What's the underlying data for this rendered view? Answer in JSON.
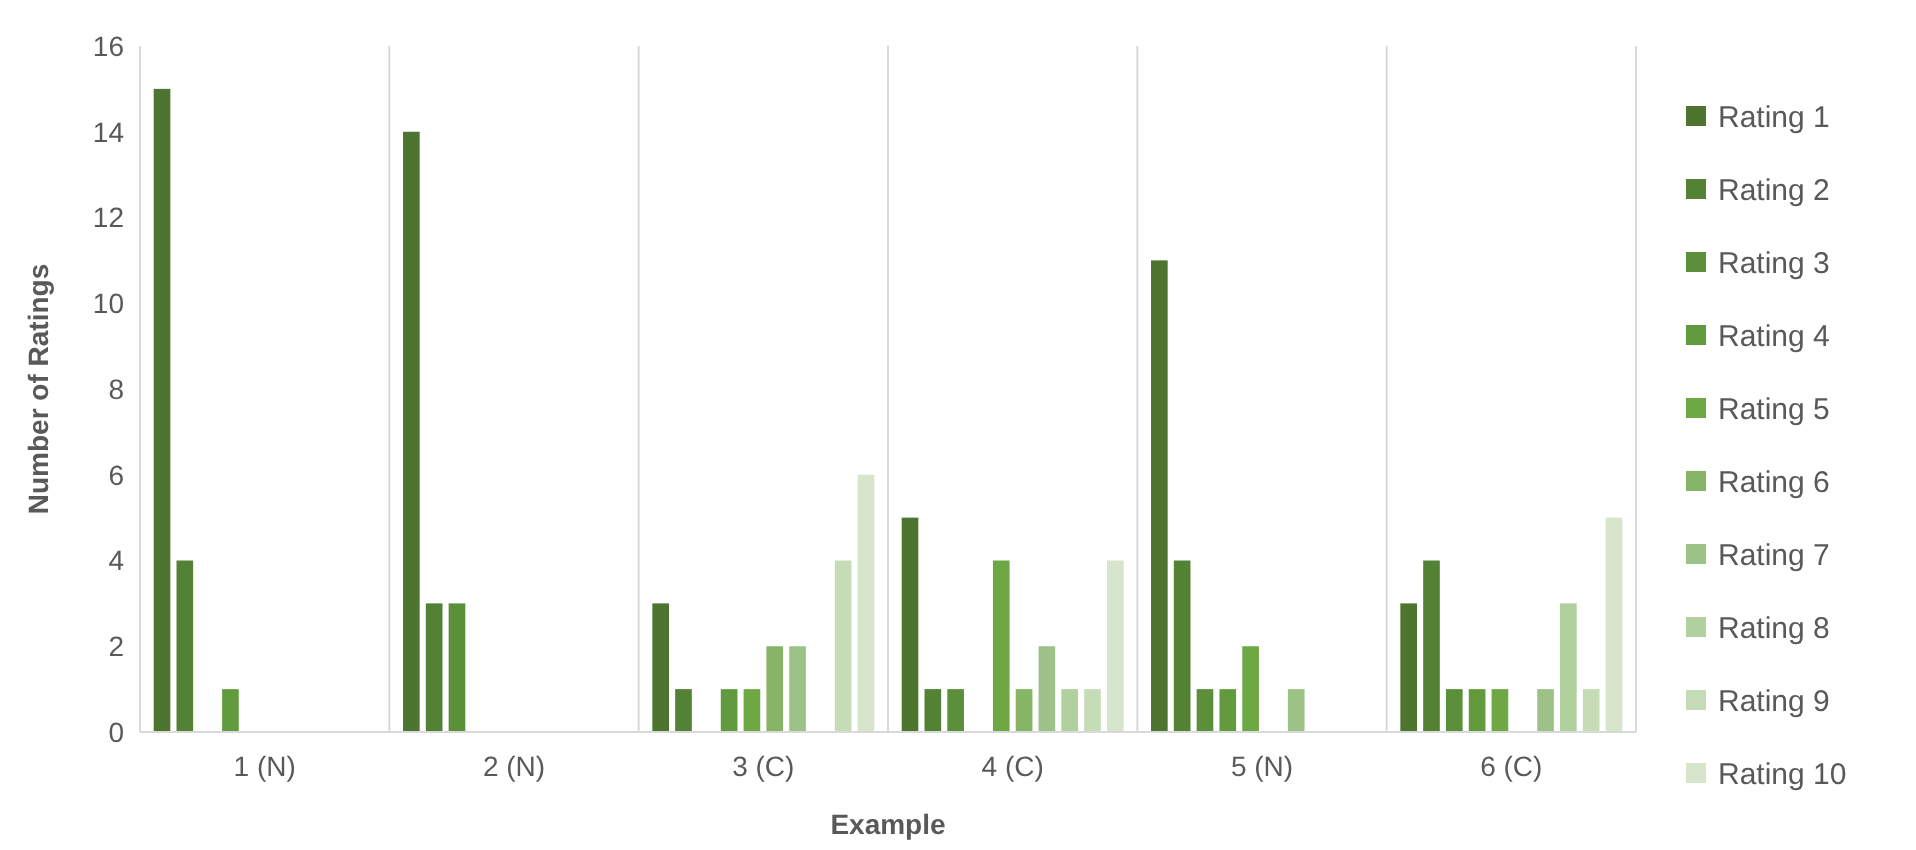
{
  "chart_data": {
    "type": "bar",
    "xlabel": "Example",
    "ylabel": "Number of Ratings",
    "categories": [
      "1 (N)",
      "2 (N)",
      "3 (C)",
      "4 (C)",
      "5 (N)",
      "6 (C)"
    ],
    "ylim": [
      0,
      16
    ],
    "yticks": [
      0,
      2,
      4,
      6,
      8,
      10,
      12,
      14,
      16
    ],
    "grid": "x",
    "legend": "right",
    "series": [
      {
        "name": "Rating 1",
        "color": "#4e7530",
        "values": [
          15,
          14,
          3,
          5,
          11,
          3
        ]
      },
      {
        "name": "Rating 2",
        "color": "#548235",
        "values": [
          4,
          3,
          1,
          1,
          4,
          4
        ]
      },
      {
        "name": "Rating 3",
        "color": "#5c8f3a",
        "values": [
          0,
          3,
          0,
          1,
          1,
          1
        ]
      },
      {
        "name": "Rating 4",
        "color": "#629b3e",
        "values": [
          1,
          0,
          1,
          0,
          1,
          1
        ]
      },
      {
        "name": "Rating 5",
        "color": "#6ea845",
        "values": [
          0,
          0,
          1,
          4,
          2,
          1
        ]
      },
      {
        "name": "Rating 6",
        "color": "#85b565",
        "values": [
          0,
          0,
          2,
          1,
          0,
          0
        ]
      },
      {
        "name": "Rating 7",
        "color": "#9dc287",
        "values": [
          0,
          0,
          2,
          2,
          1,
          1
        ]
      },
      {
        "name": "Rating 8",
        "color": "#b0d09e",
        "values": [
          0,
          0,
          0,
          1,
          0,
          3
        ]
      },
      {
        "name": "Rating 9",
        "color": "#c5dcb6",
        "values": [
          0,
          0,
          4,
          1,
          0,
          1
        ]
      },
      {
        "name": "Rating 10",
        "color": "#d6e5cc",
        "values": [
          0,
          0,
          6,
          4,
          0,
          5
        ]
      }
    ]
  }
}
